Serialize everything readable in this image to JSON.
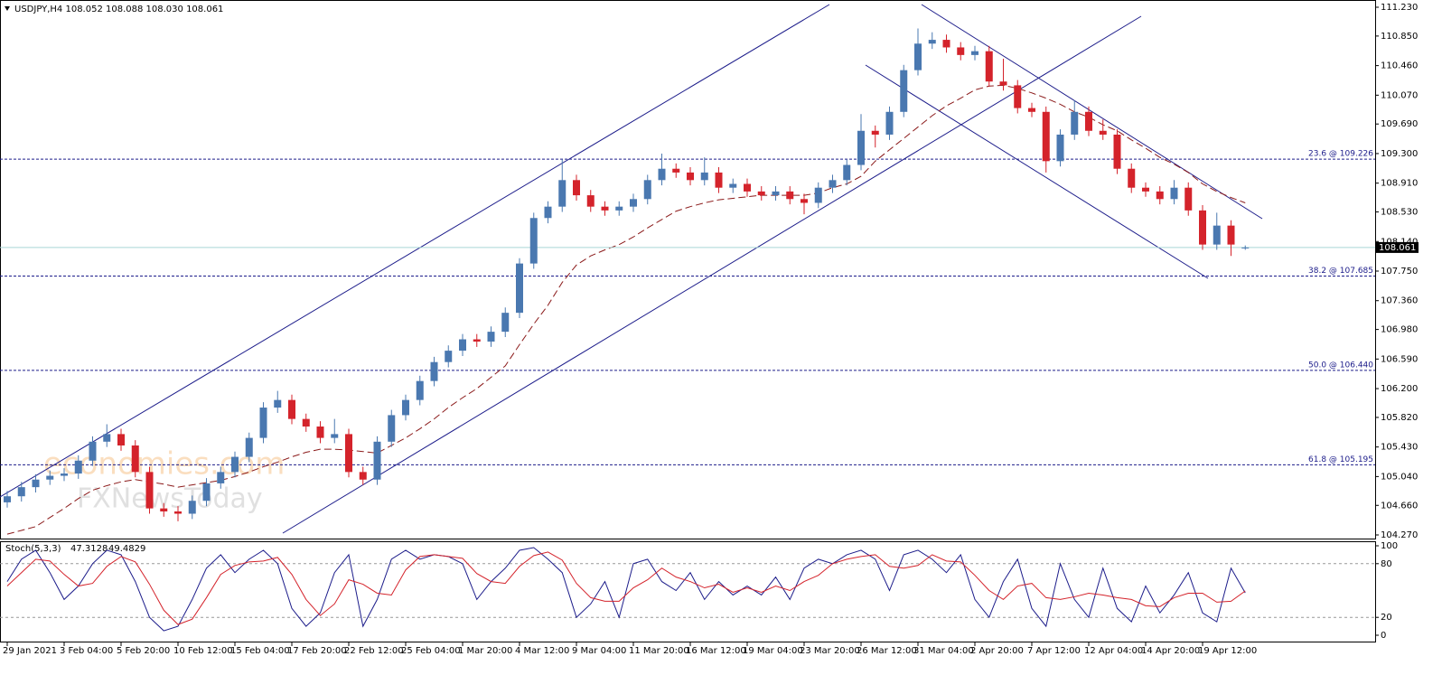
{
  "chart_data": {
    "type": "candlestick",
    "title": "USDJPY,H4  108.052 108.088 108.030 108.061",
    "watermark": [
      "economies.com",
      "FXNewsToday"
    ],
    "bull_color": "#4a78b0",
    "bear_color": "#d4232b",
    "ma_color": "#8b1a1a",
    "level_color": "#1c1c8a",
    "ylim": [
      104.27,
      111.23
    ],
    "yticks": [
      {
        "value": 104.27,
        "label": "104.270"
      },
      {
        "value": 104.66,
        "label": "104.660"
      },
      {
        "value": 105.04,
        "label": "105.040"
      },
      {
        "value": 105.43,
        "label": "105.430"
      },
      {
        "value": 105.82,
        "label": "105.820"
      },
      {
        "value": 106.2,
        "label": "106.200"
      },
      {
        "value": 106.59,
        "label": "106.590"
      },
      {
        "value": 106.98,
        "label": "106.980"
      },
      {
        "value": 107.36,
        "label": "107.360"
      },
      {
        "value": 107.75,
        "label": "107.750"
      },
      {
        "value": 108.14,
        "label": "108.140"
      },
      {
        "value": 108.53,
        "label": "108.530"
      },
      {
        "value": 108.91,
        "label": "108.910"
      },
      {
        "value": 109.3,
        "label": "109.300"
      },
      {
        "value": 109.69,
        "label": "109.690"
      },
      {
        "value": 110.07,
        "label": "110.070"
      },
      {
        "value": 110.46,
        "label": "110.460"
      },
      {
        "value": 110.85,
        "label": "110.850"
      },
      {
        "value": 111.23,
        "label": "111.230"
      }
    ],
    "levels": [
      {
        "value": 109.226,
        "label": "23.6 @ 109.226"
      },
      {
        "value": 107.685,
        "label": "38.2 @ 107.685"
      },
      {
        "value": 106.44,
        "label": "50.0 @ 106.440"
      },
      {
        "value": 105.195,
        "label": "61.8 @ 105.195"
      }
    ],
    "xticks": [
      "29 Jan 2021",
      "3 Feb 04:00",
      "5 Feb 20:00",
      "10 Feb 12:00",
      "15 Feb 04:00",
      "17 Feb 20:00",
      "22 Feb 12:00",
      "25 Feb 04:00",
      "1 Mar 20:00",
      "4 Mar 12:00",
      "9 Mar 04:00",
      "11 Mar 20:00",
      "16 Mar 12:00",
      "19 Mar 04:00",
      "23 Mar 20:00",
      "26 Mar 12:00",
      "31 Mar 04:00",
      "2 Apr 20:00",
      "7 Apr 12:00",
      "12 Apr 04:00",
      "14 Apr 20:00",
      "19 Apr 12:00"
    ],
    "candles": {
      "open": [
        104.7,
        104.78,
        104.9,
        105.0,
        105.05,
        105.08,
        105.25,
        105.5,
        105.6,
        105.45,
        105.1,
        104.62,
        104.58,
        104.55,
        104.72,
        104.95,
        105.1,
        105.3,
        105.55,
        105.95,
        106.05,
        105.8,
        105.7,
        105.55,
        105.6,
        105.1,
        105.0,
        105.5,
        105.85,
        106.05,
        106.3,
        106.55,
        106.7,
        106.85,
        106.82,
        106.95,
        107.2,
        107.85,
        108.45,
        108.6,
        108.95,
        108.75,
        108.6,
        108.55,
        108.6,
        108.7,
        108.95,
        109.1,
        109.05,
        108.95,
        109.05,
        108.85,
        108.9,
        108.8,
        108.75,
        108.8,
        108.7,
        108.65,
        108.85,
        108.95,
        109.15,
        109.6,
        109.55,
        109.85,
        110.4,
        110.75,
        110.8,
        110.7,
        110.6,
        110.65,
        110.25,
        110.2,
        109.9,
        109.85,
        109.2,
        109.55,
        109.85,
        109.6,
        109.55,
        109.1,
        108.85,
        108.8,
        108.7,
        108.85,
        108.55,
        108.1,
        108.35,
        108.052
      ],
      "high": [
        104.85,
        104.97,
        105.07,
        105.12,
        105.15,
        105.32,
        105.57,
        105.73,
        105.67,
        105.52,
        105.17,
        104.69,
        104.65,
        104.79,
        105.02,
        105.17,
        105.37,
        105.62,
        106.02,
        106.17,
        106.12,
        105.87,
        105.77,
        105.8,
        105.67,
        105.17,
        105.57,
        105.92,
        106.12,
        106.37,
        106.62,
        106.77,
        106.92,
        106.92,
        107.02,
        107.27,
        107.92,
        108.52,
        108.67,
        109.22,
        109.02,
        108.82,
        108.67,
        108.67,
        108.77,
        109.02,
        109.3,
        109.17,
        109.12,
        109.25,
        109.12,
        108.97,
        108.97,
        108.87,
        108.87,
        108.87,
        108.77,
        108.92,
        109.02,
        109.22,
        109.82,
        109.67,
        109.92,
        110.47,
        110.95,
        110.9,
        110.87,
        110.77,
        110.72,
        110.72,
        110.55,
        110.27,
        109.97,
        109.92,
        109.62,
        110.0,
        109.92,
        109.75,
        109.62,
        109.17,
        108.92,
        108.87,
        108.95,
        108.92,
        108.62,
        108.52,
        108.42,
        108.088
      ],
      "low": [
        104.63,
        104.71,
        104.83,
        104.93,
        104.98,
        105.01,
        105.18,
        105.43,
        105.38,
        105.03,
        104.55,
        104.51,
        104.45,
        104.48,
        104.65,
        104.88,
        105.03,
        105.23,
        105.48,
        105.88,
        105.73,
        105.63,
        105.48,
        105.48,
        105.03,
        104.93,
        104.93,
        105.43,
        105.78,
        105.98,
        106.23,
        106.48,
        106.63,
        106.75,
        106.75,
        106.88,
        107.13,
        107.78,
        108.38,
        108.53,
        108.68,
        108.53,
        108.48,
        108.48,
        108.53,
        108.63,
        108.88,
        108.98,
        108.88,
        108.88,
        108.78,
        108.78,
        108.73,
        108.68,
        108.68,
        108.63,
        108.5,
        108.58,
        108.78,
        108.88,
        109.08,
        109.38,
        109.48,
        109.78,
        110.33,
        110.68,
        110.63,
        110.53,
        110.53,
        110.18,
        110.13,
        109.83,
        109.78,
        109.05,
        109.13,
        109.48,
        109.53,
        109.48,
        109.03,
        108.78,
        108.73,
        108.63,
        108.63,
        108.48,
        108.03,
        108.03,
        107.95,
        108.03
      ],
      "close": [
        104.78,
        104.9,
        105.0,
        105.05,
        105.08,
        105.25,
        105.5,
        105.6,
        105.45,
        105.1,
        104.62,
        104.58,
        104.55,
        104.72,
        104.95,
        105.1,
        105.3,
        105.55,
        105.95,
        106.05,
        105.8,
        105.7,
        105.55,
        105.6,
        105.1,
        105.0,
        105.5,
        105.85,
        106.05,
        106.3,
        106.55,
        106.7,
        106.85,
        106.82,
        106.95,
        107.2,
        107.85,
        108.45,
        108.6,
        108.95,
        108.75,
        108.6,
        108.55,
        108.6,
        108.7,
        108.95,
        109.1,
        109.05,
        108.95,
        109.05,
        108.85,
        108.9,
        108.8,
        108.75,
        108.8,
        108.7,
        108.65,
        108.85,
        108.95,
        109.15,
        109.6,
        109.55,
        109.85,
        110.4,
        110.75,
        110.8,
        110.7,
        110.6,
        110.65,
        110.25,
        110.2,
        109.9,
        109.85,
        109.2,
        109.55,
        109.85,
        109.6,
        109.55,
        109.1,
        108.85,
        108.8,
        108.7,
        108.85,
        108.55,
        108.1,
        108.35,
        108.1,
        108.061
      ]
    },
    "ma_values": [
      104.28,
      104.33,
      104.38,
      104.5,
      104.62,
      104.75,
      104.86,
      104.92,
      104.97,
      105.0,
      104.97,
      104.94,
      104.9,
      104.93,
      104.96,
      104.99,
      105.04,
      105.1,
      105.17,
      105.23,
      105.3,
      105.36,
      105.4,
      105.4,
      105.39,
      105.37,
      105.35,
      105.45,
      105.55,
      105.67,
      105.8,
      105.95,
      106.08,
      106.2,
      106.35,
      106.5,
      106.78,
      107.05,
      107.3,
      107.6,
      107.83,
      107.95,
      108.03,
      108.1,
      108.2,
      108.32,
      108.43,
      108.54,
      108.6,
      108.65,
      108.69,
      108.71,
      108.73,
      108.75,
      108.75,
      108.75,
      108.75,
      108.78,
      108.85,
      108.9,
      109.0,
      109.2,
      109.35,
      109.5,
      109.65,
      109.8,
      109.93,
      110.03,
      110.14,
      110.19,
      110.2,
      110.16,
      110.1,
      110.03,
      109.95,
      109.85,
      109.78,
      109.68,
      109.6,
      109.48,
      109.37,
      109.25,
      109.16,
      109.05,
      108.9,
      108.8,
      108.72,
      108.65
    ],
    "stoch": {
      "name": "Stoch(5,3,3)",
      "ylim": [
        0,
        100
      ],
      "yticks": [
        0,
        20,
        80,
        100
      ],
      "series": [
        {
          "color": "#1c1c8a",
          "values": [
            60,
            85,
            95,
            70,
            40,
            55,
            80,
            95,
            90,
            60,
            20,
            5,
            10,
            40,
            75,
            90,
            70,
            85,
            95,
            80,
            30,
            10,
            25,
            70,
            90,
            10,
            40,
            85,
            95,
            85,
            90,
            88,
            80,
            40,
            60,
            75,
            95,
            98,
            85,
            70,
            20,
            35,
            60,
            20,
            80,
            85,
            60,
            50,
            70,
            40,
            60,
            45,
            55,
            45,
            65,
            40,
            75,
            85,
            80,
            90,
            95,
            85,
            50,
            90,
            95,
            85,
            70,
            90,
            40,
            20,
            60,
            85,
            30,
            10,
            80,
            40,
            20,
            75,
            30,
            15,
            55,
            25,
            45,
            70,
            25,
            15,
            75,
            47.3128
          ]
        },
        {
          "color": "#d4232b",
          "values": [
            55,
            70,
            85,
            83,
            68,
            55,
            58,
            77,
            88,
            82,
            57,
            28,
            12,
            18,
            42,
            68,
            78,
            82,
            83,
            87,
            68,
            40,
            22,
            35,
            62,
            57,
            47,
            45,
            73,
            88,
            90,
            88,
            86,
            69,
            60,
            58,
            77,
            89,
            93,
            84,
            58,
            42,
            38,
            38,
            53,
            62,
            75,
            65,
            60,
            53,
            57,
            48,
            53,
            48,
            55,
            50,
            60,
            67,
            80,
            85,
            88,
            90,
            77,
            75,
            78,
            90,
            83,
            82,
            67,
            50,
            40,
            55,
            58,
            42,
            40,
            43,
            47,
            45,
            42,
            40,
            33,
            32,
            42,
            47,
            47,
            37,
            38,
            49.4829
          ]
        }
      ]
    }
  }
}
